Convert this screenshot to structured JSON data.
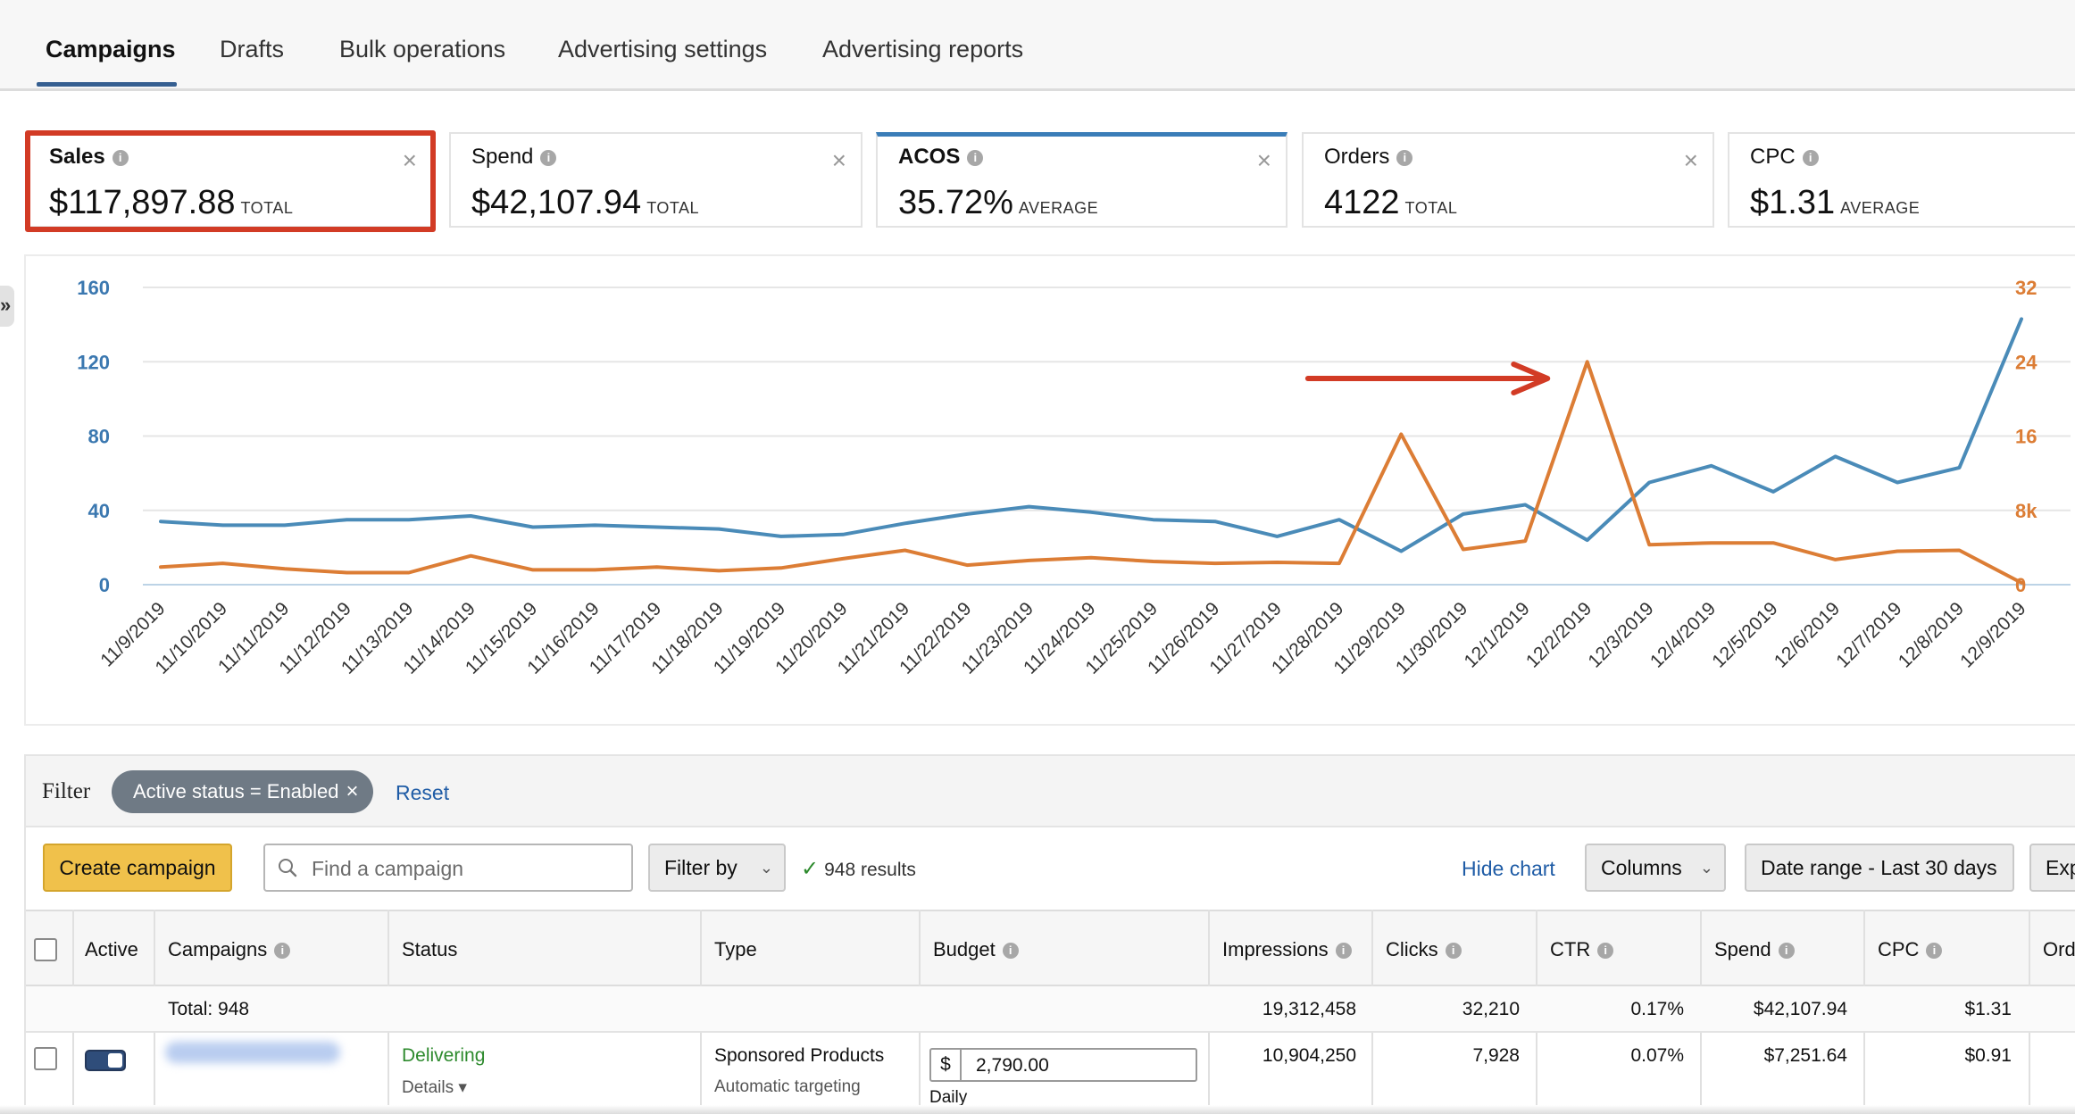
{
  "tabs": [
    {
      "label": "Campaigns",
      "active": true
    },
    {
      "label": "Drafts"
    },
    {
      "label": "Bulk operations"
    },
    {
      "label": "Advertising settings"
    },
    {
      "label": "Advertising reports"
    }
  ],
  "metrics": [
    {
      "label": "Sales",
      "value": "$117,897.88",
      "agg": "TOTAL",
      "selected": true,
      "highlighted": true
    },
    {
      "label": "Spend",
      "value": "$42,107.94",
      "agg": "TOTAL"
    },
    {
      "label": "ACOS",
      "value": "35.72%",
      "agg": "AVERAGE",
      "selected": true
    },
    {
      "label": "Orders",
      "value": "4122",
      "agg": "TOTAL"
    },
    {
      "label": "CPC",
      "value": "$1.31",
      "agg": "AVERAGE"
    }
  ],
  "chart_data": {
    "type": "line",
    "x": [
      "11/9/2019",
      "11/10/2019",
      "11/11/2019",
      "11/12/2019",
      "11/13/2019",
      "11/14/2019",
      "11/15/2019",
      "11/16/2019",
      "11/17/2019",
      "11/18/2019",
      "11/19/2019",
      "11/20/2019",
      "11/21/2019",
      "11/22/2019",
      "11/23/2019",
      "11/24/2019",
      "11/25/2019",
      "11/26/2019",
      "11/27/2019",
      "11/28/2019",
      "11/29/2019",
      "11/30/2019",
      "12/1/2019",
      "12/2/2019",
      "12/3/2019",
      "12/4/2019",
      "12/5/2019",
      "12/6/2019",
      "12/7/2019",
      "12/8/2019",
      "12/9/2019"
    ],
    "series": [
      {
        "axis": "left",
        "color": "#4a8bb8",
        "values": [
          34,
          32,
          32,
          35,
          35,
          37,
          31,
          32,
          31,
          30,
          26,
          27,
          33,
          38,
          42,
          39,
          35,
          34,
          26,
          35,
          18,
          38,
          43,
          24,
          55,
          64,
          50,
          69,
          55,
          63,
          143
        ]
      },
      {
        "axis": "right",
        "color": "#dc7d35",
        "values": [
          1900,
          2300,
          1700,
          1300,
          1300,
          3100,
          1600,
          1600,
          1900,
          1500,
          1800,
          2800,
          3700,
          2100,
          2600,
          2900,
          2500,
          2300,
          2400,
          2300,
          16200,
          3800,
          4700,
          24000,
          4300,
          4500,
          4500,
          2700,
          3600,
          3700,
          200
        ]
      }
    ],
    "left_axis": {
      "ticks": [
        "160",
        "120",
        "80",
        "40",
        "0"
      ],
      "ylim": [
        0,
        160
      ],
      "color": "#3b78b0"
    },
    "right_axis": {
      "ticks": [
        "32",
        "24",
        "16",
        "8k",
        "0"
      ],
      "ylim": [
        0,
        32000
      ],
      "color": "#dc7d35"
    },
    "grid": true,
    "annotation": {
      "type": "arrow",
      "color": "#d23b25"
    }
  },
  "filter": {
    "label": "Filter",
    "chip": "Active status = Enabled",
    "chip_close": "×",
    "reset": "Reset"
  },
  "toolbar": {
    "create_label": "Create campaign",
    "search_placeholder": "Find a campaign",
    "filter_by": "Filter by",
    "results": "948 results",
    "hide_chart": "Hide chart",
    "columns": "Columns",
    "date_range": "Date range - Last 30 days",
    "export": "Exp"
  },
  "table": {
    "headers": {
      "active": "Active",
      "campaigns": "Campaigns",
      "status": "Status",
      "type": "Type",
      "budget": "Budget",
      "impressions": "Impressions",
      "clicks": "Clicks",
      "ctr": "CTR",
      "spend": "Spend",
      "cpc": "CPC",
      "orders": "Ord"
    },
    "total": {
      "label": "Total: 948",
      "impressions": "19,312,458",
      "clicks": "32,210",
      "ctr": "0.17%",
      "spend": "$42,107.94",
      "cpc": "$1.31"
    },
    "row": {
      "status": "Delivering",
      "details": "Details ▾",
      "type": "Sponsored Products",
      "targeting": "Automatic targeting",
      "currency": "$",
      "budget": "2,790.00",
      "budget_period": "Daily",
      "impressions": "10,904,250",
      "clicks": "7,928",
      "ctr": "0.07%",
      "spend": "$7,251.64",
      "cpc": "$0.91"
    }
  },
  "icons": {
    "info": "i",
    "close": "×",
    "chevron": "⌄",
    "check": "✓",
    "collapse": "»"
  }
}
